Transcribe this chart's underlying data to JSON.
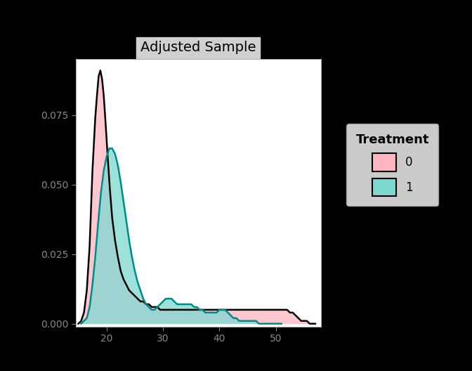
{
  "title": "Adjusted Sample",
  "background_color": "#000000",
  "plot_bg_color": "#ffffff",
  "title_bg_color": "#d0d0d0",
  "xlim": [
    14.5,
    58
  ],
  "ylim": [
    -0.001,
    0.095
  ],
  "yticks": [
    0.0,
    0.025,
    0.05,
    0.075
  ],
  "xticks": [
    20,
    30,
    40,
    50
  ],
  "legend_title": "Treatment",
  "legend_labels": [
    "0",
    "1"
  ],
  "color_0": "#FFB6C1",
  "color_1": "#7DD8D0",
  "edgecolor": "#000000",
  "edgecolor_1": "#008B8B",
  "kde_0_x": [
    15.0,
    15.5,
    16.0,
    16.5,
    17.0,
    17.5,
    18.0,
    18.3,
    18.6,
    18.9,
    19.2,
    19.5,
    19.8,
    20.2,
    20.6,
    21.0,
    21.5,
    22.0,
    22.5,
    23.0,
    23.5,
    24.0,
    24.5,
    25.0,
    25.5,
    26.0,
    26.5,
    27.0,
    27.5,
    28.0,
    28.5,
    29.0,
    29.5,
    30.0,
    30.5,
    31.0,
    31.5,
    32.0,
    32.5,
    33.0,
    33.5,
    34.0,
    34.5,
    35.0,
    35.5,
    36.0,
    36.5,
    37.0,
    37.5,
    38.0,
    38.5,
    39.0,
    39.5,
    40.0,
    40.5,
    41.0,
    41.5,
    42.0,
    42.5,
    43.0,
    43.5,
    44.0,
    44.5,
    45.0,
    45.5,
    46.0,
    46.5,
    47.0,
    47.5,
    48.0,
    48.5,
    49.0,
    49.5,
    50.0,
    50.5,
    51.0,
    51.5,
    52.0,
    52.5,
    53.0,
    53.5,
    54.0,
    54.5,
    55.0,
    55.5,
    56.0,
    56.5,
    57.0
  ],
  "kde_0_y": [
    0.0,
    0.001,
    0.004,
    0.012,
    0.028,
    0.055,
    0.074,
    0.082,
    0.089,
    0.091,
    0.088,
    0.082,
    0.073,
    0.06,
    0.048,
    0.038,
    0.03,
    0.024,
    0.019,
    0.016,
    0.014,
    0.012,
    0.011,
    0.01,
    0.009,
    0.008,
    0.008,
    0.007,
    0.007,
    0.006,
    0.006,
    0.006,
    0.005,
    0.005,
    0.005,
    0.005,
    0.005,
    0.005,
    0.005,
    0.005,
    0.005,
    0.005,
    0.005,
    0.005,
    0.005,
    0.005,
    0.005,
    0.005,
    0.005,
    0.005,
    0.005,
    0.005,
    0.005,
    0.005,
    0.005,
    0.005,
    0.005,
    0.005,
    0.005,
    0.005,
    0.005,
    0.005,
    0.005,
    0.005,
    0.005,
    0.005,
    0.005,
    0.005,
    0.005,
    0.005,
    0.005,
    0.005,
    0.005,
    0.005,
    0.005,
    0.005,
    0.005,
    0.005,
    0.004,
    0.004,
    0.003,
    0.002,
    0.001,
    0.001,
    0.001,
    0.0,
    0.0,
    0.0
  ],
  "kde_1_x": [
    15.5,
    16.0,
    16.5,
    17.0,
    17.5,
    18.0,
    18.5,
    19.0,
    19.5,
    20.0,
    20.5,
    21.0,
    21.5,
    22.0,
    22.5,
    23.0,
    23.5,
    24.0,
    24.5,
    25.0,
    25.5,
    26.0,
    26.5,
    27.0,
    27.5,
    28.0,
    28.5,
    29.0,
    29.5,
    30.0,
    30.5,
    31.0,
    31.5,
    32.0,
    32.5,
    33.0,
    33.5,
    34.0,
    34.5,
    35.0,
    35.5,
    36.0,
    36.5,
    37.0,
    37.5,
    38.0,
    38.5,
    39.0,
    39.5,
    40.0,
    40.5,
    41.0,
    41.5,
    42.0,
    42.5,
    43.0,
    43.5,
    44.0,
    44.5,
    45.0,
    45.5,
    46.0,
    46.5,
    47.0,
    47.5,
    48.0,
    48.5,
    49.0,
    49.5,
    50.0,
    50.5,
    51.0
  ],
  "kde_1_y": [
    0.0,
    0.001,
    0.002,
    0.006,
    0.014,
    0.024,
    0.036,
    0.047,
    0.055,
    0.06,
    0.063,
    0.063,
    0.061,
    0.057,
    0.051,
    0.044,
    0.037,
    0.03,
    0.024,
    0.019,
    0.015,
    0.012,
    0.009,
    0.007,
    0.006,
    0.005,
    0.005,
    0.006,
    0.007,
    0.008,
    0.009,
    0.009,
    0.009,
    0.008,
    0.007,
    0.007,
    0.007,
    0.007,
    0.007,
    0.007,
    0.006,
    0.006,
    0.005,
    0.005,
    0.004,
    0.004,
    0.004,
    0.004,
    0.004,
    0.005,
    0.005,
    0.005,
    0.004,
    0.003,
    0.002,
    0.002,
    0.001,
    0.001,
    0.001,
    0.001,
    0.001,
    0.001,
    0.001,
    0.0,
    0.0,
    0.0,
    0.0,
    0.0,
    0.0,
    0.0,
    0.0,
    0.0
  ]
}
